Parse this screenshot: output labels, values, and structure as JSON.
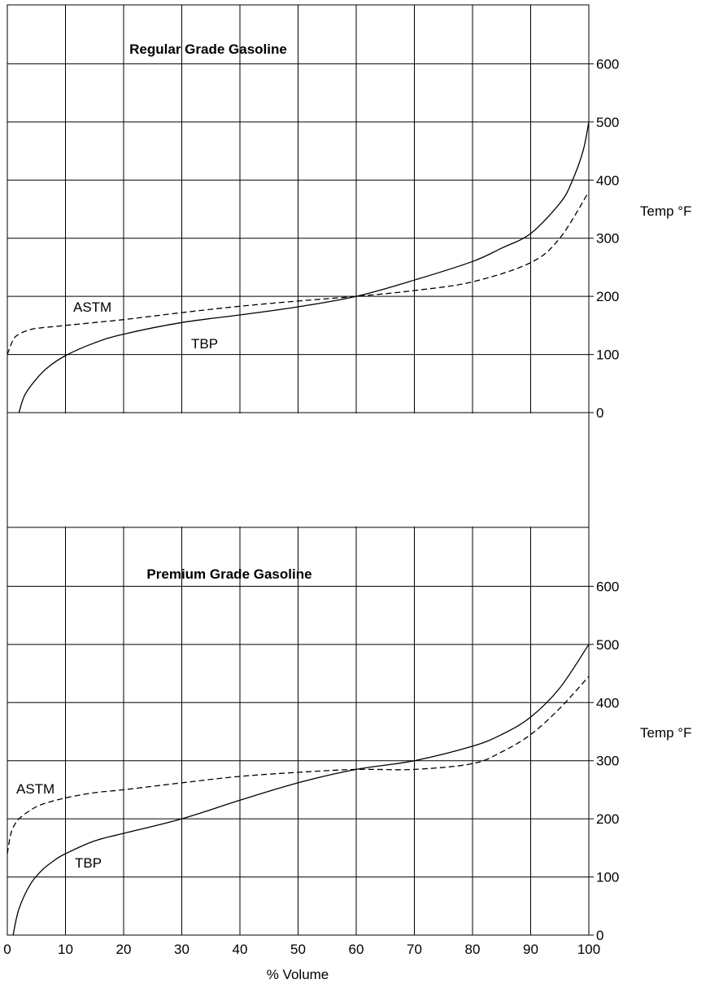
{
  "chart_data": [
    {
      "type": "line",
      "title": "Regular Grade Gasoline",
      "xlabel": "",
      "ylabel": "Temp °F",
      "xlim": [
        0,
        100
      ],
      "ylim": [
        0,
        700
      ],
      "x_ticks": [],
      "y_ticks": [
        "0",
        "100",
        "200",
        "300",
        "400",
        "500",
        "600"
      ],
      "grid": true,
      "series": [
        {
          "name": "ASTM",
          "style": "dashed",
          "x": [
            0,
            1,
            2,
            4,
            6,
            8,
            10,
            15,
            20,
            30,
            40,
            50,
            60,
            70,
            80,
            90,
            95,
            100
          ],
          "y": [
            100,
            125,
            135,
            143,
            146,
            148,
            150,
            155,
            160,
            172,
            183,
            192,
            200,
            210,
            225,
            258,
            300,
            380
          ]
        },
        {
          "name": "TBP",
          "style": "solid",
          "x": [
            2,
            3,
            5,
            7,
            10,
            15,
            20,
            30,
            40,
            50,
            60,
            70,
            80,
            85,
            90,
            95,
            97,
            99,
            100
          ],
          "y": [
            0,
            30,
            58,
            78,
            98,
            120,
            135,
            155,
            168,
            182,
            200,
            228,
            260,
            283,
            308,
            360,
            395,
            450,
            500
          ]
        }
      ]
    },
    {
      "type": "line",
      "title": "Premium Grade Gasoline",
      "xlabel": "% Volume",
      "ylabel": "Temp °F",
      "xlim": [
        0,
        100
      ],
      "ylim": [
        0,
        700
      ],
      "x_ticks": [
        "0",
        "10",
        "20",
        "30",
        "40",
        "50",
        "60",
        "70",
        "80",
        "90",
        "100"
      ],
      "y_ticks": [
        "0",
        "100",
        "200",
        "300",
        "400",
        "500",
        "600"
      ],
      "grid": true,
      "series": [
        {
          "name": "ASTM",
          "style": "dashed",
          "x": [
            0,
            0.5,
            1,
            2,
            4,
            6,
            10,
            15,
            20,
            30,
            40,
            50,
            60,
            70,
            80,
            85,
            90,
            95,
            100
          ],
          "y": [
            140,
            170,
            185,
            200,
            215,
            225,
            236,
            245,
            250,
            262,
            273,
            280,
            285,
            285,
            295,
            315,
            345,
            390,
            445
          ]
        },
        {
          "name": "TBP",
          "style": "solid",
          "x": [
            1,
            2,
            4,
            6,
            8,
            10,
            15,
            20,
            30,
            40,
            50,
            60,
            70,
            80,
            85,
            90,
            95,
            100
          ],
          "y": [
            0,
            45,
            88,
            112,
            128,
            140,
            162,
            175,
            200,
            232,
            262,
            285,
            300,
            325,
            345,
            375,
            425,
            500
          ]
        }
      ]
    }
  ]
}
